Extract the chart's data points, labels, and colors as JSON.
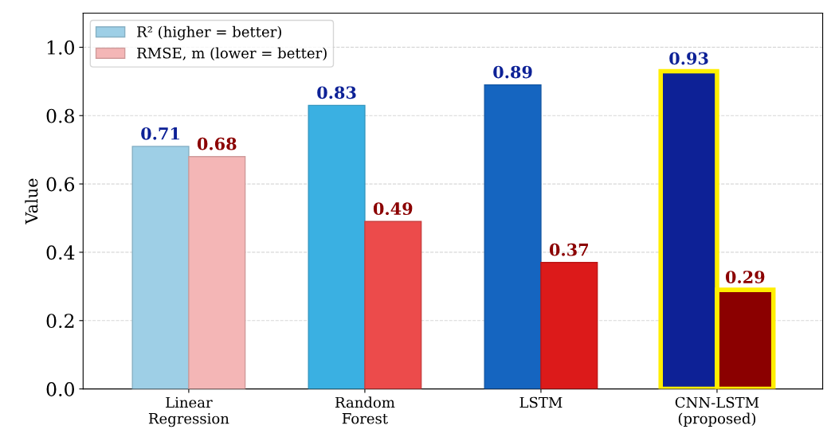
{
  "chart_data": {
    "type": "bar",
    "ylabel": "Value",
    "categories": [
      "Linear\nRegression",
      "Random\nForest",
      "LSTM",
      "CNN-LSTM\n(proposed)"
    ],
    "series": [
      {
        "name": "R² (higher = better)",
        "color": "#9ecfe6",
        "colors": [
          "#9ecfe6",
          "#3ab0e2",
          "#1565c0",
          "#0d2196"
        ],
        "values": [
          0.71,
          0.83,
          0.89,
          0.93
        ]
      },
      {
        "name": "RMSE, m (lower = better)",
        "color": "#f4b6b6",
        "colors": [
          "#f4b6b6",
          "#ec4b4b",
          "#dc1a1a",
          "#8b0000"
        ],
        "values": [
          0.68,
          0.49,
          0.37,
          0.29
        ]
      }
    ],
    "data_labels": true,
    "ylim": [
      0,
      1.1
    ],
    "yticks": [
      {
        "value": 0,
        "label": "0.0"
      },
      0.2,
      0.4,
      0.6,
      0.8,
      {
        "value": 1,
        "label": "1.0"
      }
    ],
    "grid": "y",
    "legend": "top left"
  }
}
